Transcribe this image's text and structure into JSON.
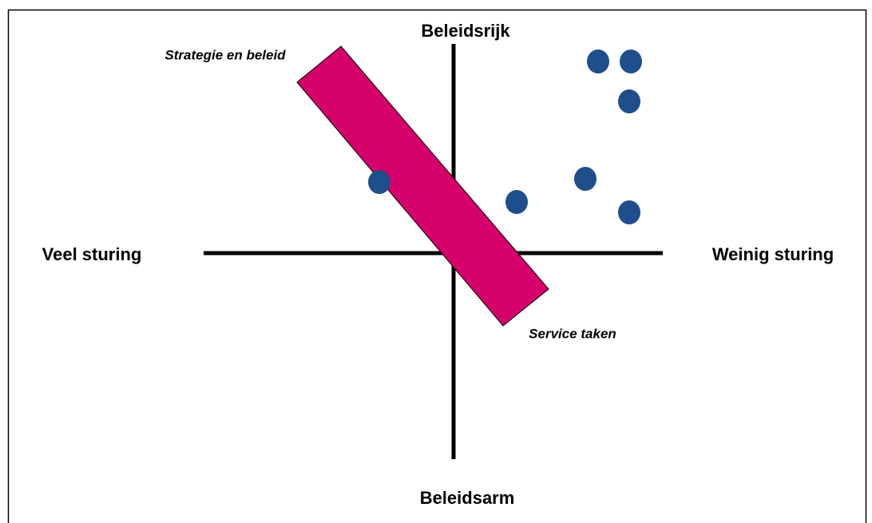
{
  "axes": {
    "top": "Beleidsrijk",
    "bottom": "Beleidsarm",
    "left": "Veel sturing",
    "right": "Weinig sturing"
  },
  "band": {
    "start_label": "Strategie en beleid",
    "end_label": "Service taken"
  }
}
